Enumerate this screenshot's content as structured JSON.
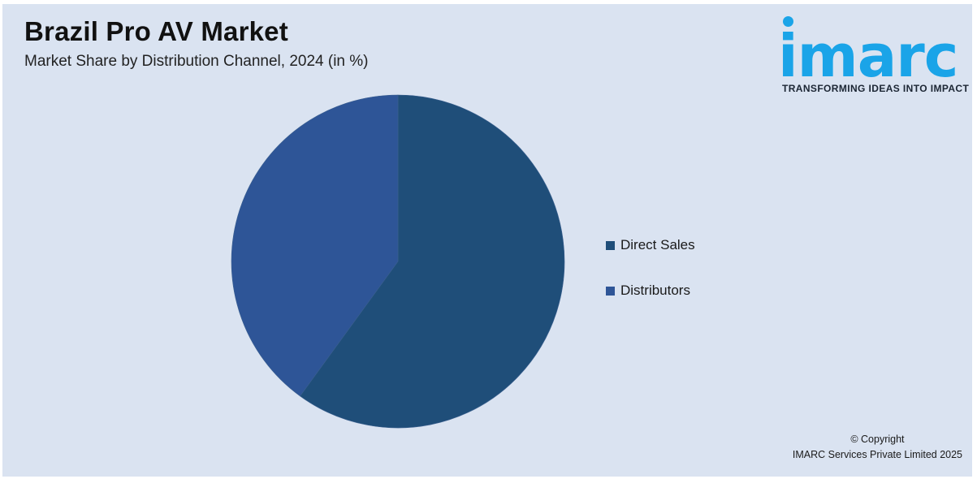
{
  "header": {
    "title": "Brazil Pro AV Market",
    "subtitle": "Market Share by Distribution Channel, 2024 (in %)"
  },
  "logo": {
    "word": "imarc",
    "tagline": "TRANSFORMING IDEAS INTO IMPACT",
    "color": "#1aa4e8"
  },
  "chart_data": {
    "type": "pie",
    "title": "Brazil Pro AV Market",
    "subtitle": "Market Share by Distribution Channel, 2024 (in %)",
    "start_angle_deg": 0,
    "direction": "clockwise",
    "legend_position": "right",
    "series": [
      {
        "name": "Direct Sales",
        "value": 60,
        "color": "#1f4e79"
      },
      {
        "name": "Distributors",
        "value": 40,
        "color": "#2e5597"
      }
    ]
  },
  "footer": {
    "copyright_line1": "© Copyright",
    "copyright_line2": "IMARC Services Private Limited 2025"
  },
  "colors": {
    "background": "#dae3f1"
  }
}
